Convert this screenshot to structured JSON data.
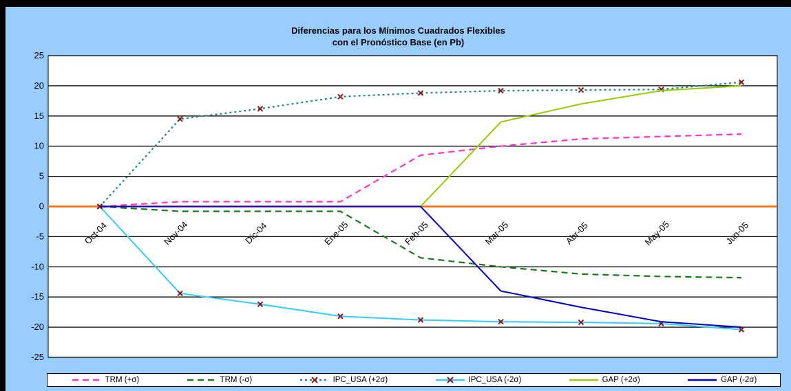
{
  "chart_data": {
    "type": "line",
    "title": "Diferencias para los Mínimos Cuadrados Flexibles",
    "subtitle": "con el Pronóstico Base (en Pb)",
    "categories": [
      "Oct-04",
      "Nov-04",
      "Dic-04",
      "Ene-05",
      "Feb-05",
      "Mar-05",
      "Abr-05",
      "May-05",
      "Jun-05"
    ],
    "y_ticks": [
      "25",
      "20",
      "15",
      "10",
      "5",
      "0",
      "-5",
      "-10",
      "-15",
      "-20",
      "-25"
    ],
    "ylim": [
      -25,
      25
    ],
    "grid": true,
    "legend_position": "bottom",
    "zero_line_color": "#ff6600",
    "series": [
      {
        "name": "TRM (+σ)",
        "color": "#ff33cc",
        "style": "dashed",
        "values": [
          0,
          0.8,
          0.8,
          0.8,
          8.5,
          10,
          11.2,
          11.6,
          12
        ]
      },
      {
        "name": "TRM (-σ)",
        "color": "#1a7a1a",
        "style": "dashed",
        "values": [
          0,
          -0.8,
          -0.8,
          -0.8,
          -8.5,
          -10,
          -11.2,
          -11.6,
          -11.8
        ]
      },
      {
        "name": "IPC_USA  (+2σ)",
        "color": "#1f8a8a",
        "style": "dotted",
        "marker": "x",
        "values": [
          0,
          14.5,
          16.2,
          18.2,
          18.8,
          19.2,
          19.3,
          19.4,
          20.6
        ]
      },
      {
        "name": "IPC_USA  (-2σ)",
        "color": "#33ccff",
        "style": "solid",
        "marker": "x",
        "values": [
          0,
          -14.4,
          -16.2,
          -18.2,
          -18.8,
          -19.1,
          -19.2,
          -19.4,
          -20.4
        ]
      },
      {
        "name": "GAP (+2σ)",
        "color": "#99cc00",
        "style": "solid",
        "values": [
          0,
          0,
          0,
          0,
          0,
          14,
          17,
          19.2,
          20
        ]
      },
      {
        "name": "GAP (-2σ)",
        "color": "#0000cc",
        "style": "solid",
        "values": [
          0,
          0,
          0,
          0,
          0,
          -14,
          -16.7,
          -19.1,
          -20
        ]
      }
    ]
  }
}
